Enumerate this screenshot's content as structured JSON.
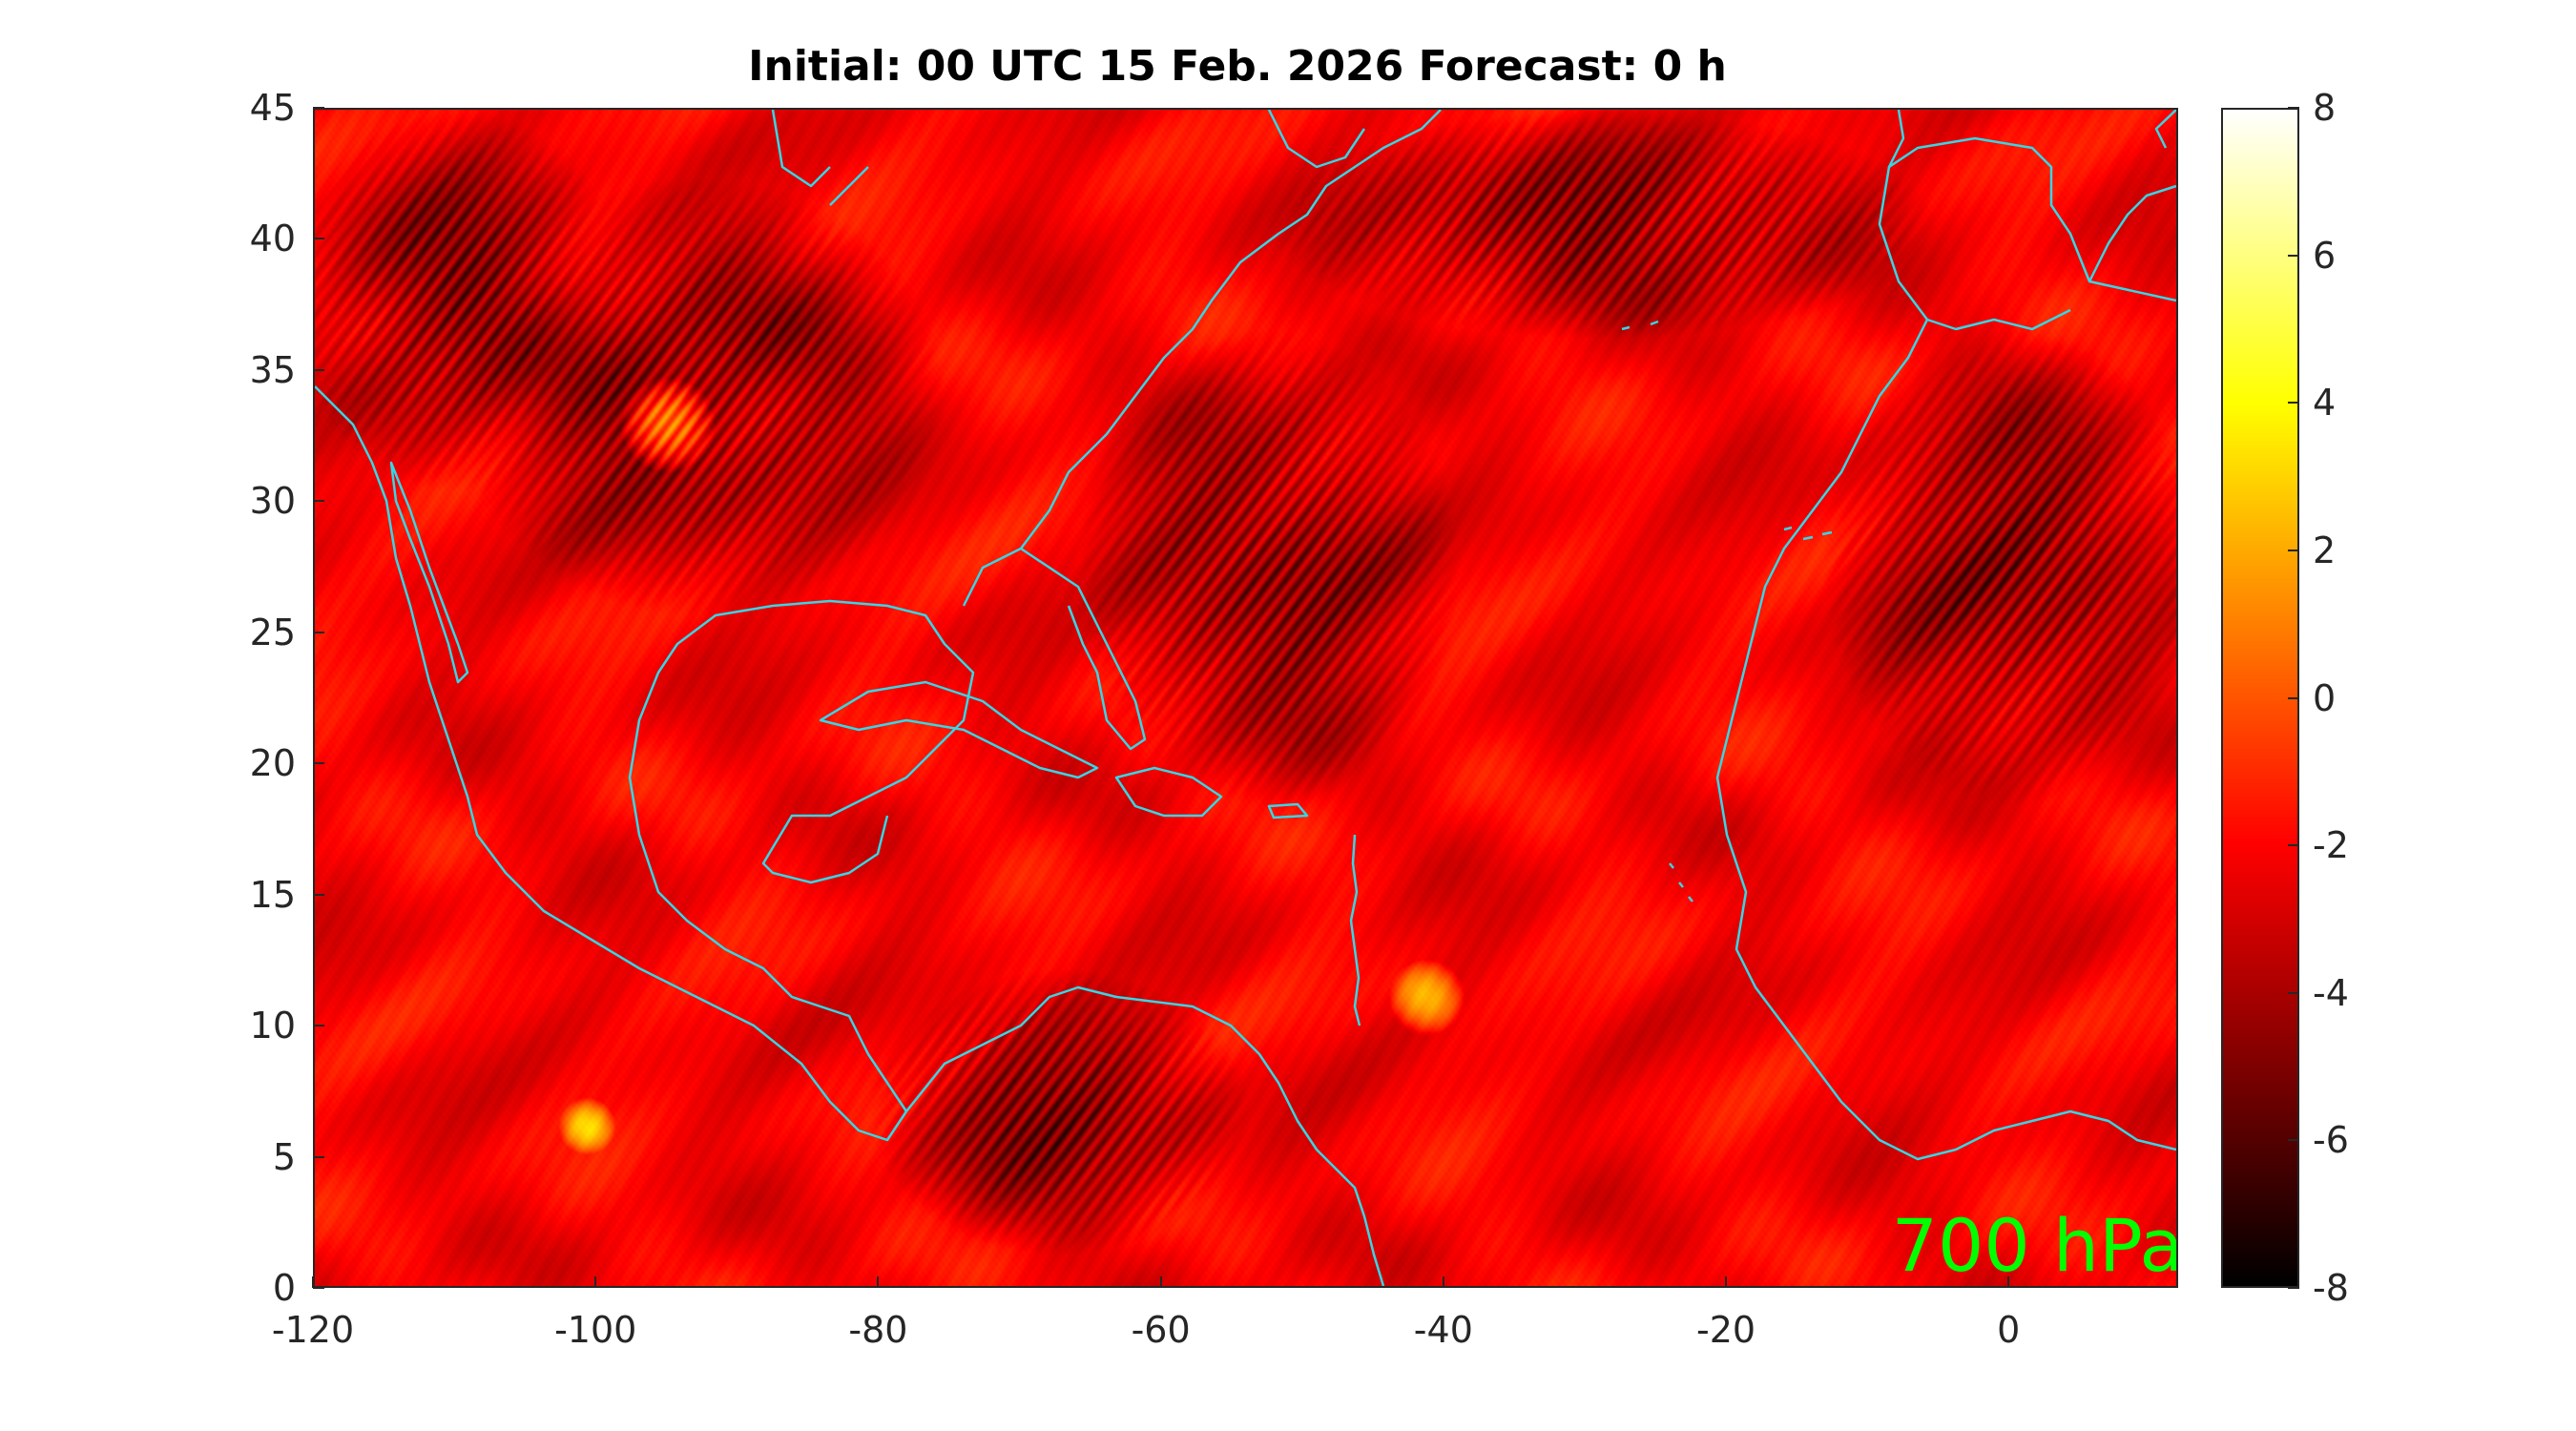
{
  "title": "Initial: 00 UTC 15 Feb. 2026 Forecast: 0 h",
  "level_label": "700 hPa",
  "map": {
    "lon_range": [
      -120,
      12
    ],
    "lat_range": [
      0,
      45
    ],
    "x_ticks": [
      "-120",
      "-100",
      "-80",
      "-60",
      "-40",
      "-20",
      "0"
    ],
    "y_ticks": [
      "0",
      "5",
      "10",
      "15",
      "20",
      "25",
      "30",
      "35",
      "40",
      "45"
    ],
    "coastline_color": "#35d7e6",
    "level_label_color": "#00ff00"
  },
  "colorbar": {
    "colormap": "hot",
    "range": [
      -8,
      8
    ],
    "ticks": [
      "8",
      "6",
      "4",
      "2",
      "0",
      "-2",
      "-4",
      "-6",
      "-8"
    ]
  }
}
